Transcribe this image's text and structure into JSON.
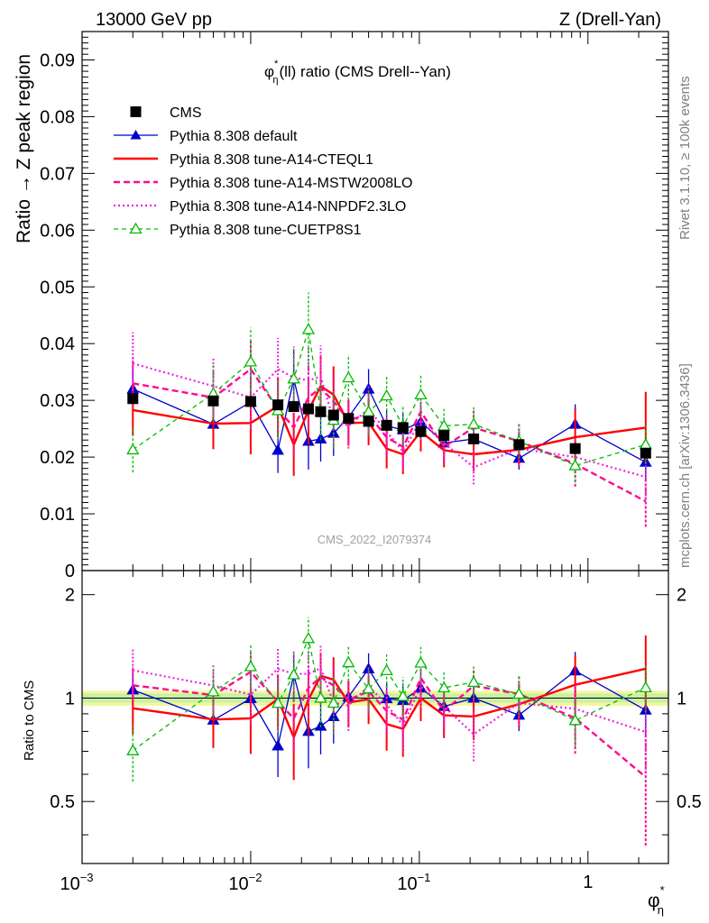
{
  "header": {
    "left": "13000 GeV pp",
    "right": "Z (Drell-Yan)"
  },
  "side": {
    "rivet": "Rivet 3.1.10, ≥ 100k events",
    "mcplots": "mcplots.cern.ch [arXiv:1306.3436]"
  },
  "watermark": "CMS_2022_I2079374",
  "colors": {
    "cms": "#000000",
    "default": "#0000cc",
    "cteql1": "#ff0000",
    "mstw": "#ff0a8c",
    "nnpdf": "#ee22dd",
    "cuetp8s1": "#00bb00",
    "band_outer": "#f4f79a",
    "band_inner": "#c8f0a8"
  },
  "chart_data": [
    {
      "type": "line",
      "title_main": "φ",
      "title_sup": "*",
      "title_sub": "η",
      "title_rest": "(ll) ratio (CMS Drell--Yan)",
      "ylabel": "Ratio → Z peak region",
      "xscale": "log",
      "xlim": [
        0.001,
        3.0
      ],
      "ylim": [
        0,
        0.095
      ],
      "yticks": [
        0,
        0.01,
        0.02,
        0.03,
        0.04,
        0.05,
        0.06,
        0.07,
        0.08,
        0.09
      ],
      "ytick_labels": [
        "0",
        "0.01",
        "0.02",
        "0.03",
        "0.04",
        "0.05",
        "0.06",
        "0.07",
        "0.08",
        "0.09"
      ],
      "legend_position": "top-left",
      "x": [
        0.002,
        0.006,
        0.01,
        0.0145,
        0.018,
        0.022,
        0.026,
        0.031,
        0.038,
        0.05,
        0.064,
        0.08,
        0.102,
        0.14,
        0.21,
        0.39,
        0.84,
        2.2
      ],
      "series": [
        {
          "name": "CMS",
          "style": "data",
          "values": [
            0.0303,
            0.0299,
            0.0298,
            0.0292,
            0.0289,
            0.0285,
            0.028,
            0.0274,
            0.0268,
            0.0263,
            0.0256,
            0.0252,
            0.0245,
            0.0238,
            0.0232,
            0.0222,
            0.0215,
            0.0207
          ]
        },
        {
          "name": "Pythia 8.308 default",
          "style": "default",
          "values": [
            0.032,
            0.0258,
            0.0297,
            0.0212,
            0.0338,
            0.0228,
            0.0232,
            0.0242,
            0.027,
            0.032,
            0.0255,
            0.0248,
            0.0262,
            0.0225,
            0.0232,
            0.0198,
            0.0258,
            0.0191
          ],
          "errors": [
            0.004,
            0.004,
            0.005,
            0.004,
            0.005,
            0.005,
            0.004,
            0.004,
            0.003,
            0.0035,
            0.003,
            0.003,
            0.003,
            0.003,
            0.003,
            0.002,
            0.0035,
            0.003
          ]
        },
        {
          "name": "Pythia 8.308 tune-A14-CTEQL1",
          "style": "cteql1",
          "values": [
            0.0283,
            0.0259,
            0.026,
            0.029,
            0.0222,
            0.0282,
            0.0325,
            0.031,
            0.026,
            0.0261,
            0.0215,
            0.0205,
            0.0245,
            0.0212,
            0.0205,
            0.0213,
            0.0235,
            0.0252
          ],
          "errors": [
            0.0045,
            0.0045,
            0.0055,
            0.005,
            0.0055,
            0.006,
            0.0055,
            0.005,
            0.004,
            0.004,
            0.0035,
            0.0035,
            0.0035,
            0.003,
            0.003,
            0.003,
            0.005,
            0.0063
          ]
        },
        {
          "name": "Pythia 8.308 tune-A14-MSTW2008LO",
          "style": "mstw",
          "values": [
            0.033,
            0.0305,
            0.0355,
            0.0285,
            0.0252,
            0.0305,
            0.0322,
            0.0298,
            0.0265,
            0.0275,
            0.0235,
            0.0218,
            0.028,
            0.0218,
            0.0252,
            0.0228,
            0.0188,
            0.0122
          ],
          "errors": [
            0.0045,
            0.0045,
            0.005,
            0.005,
            0.005,
            0.0055,
            0.005,
            0.005,
            0.004,
            0.004,
            0.0035,
            0.0035,
            0.0035,
            0.003,
            0.003,
            0.003,
            0.004,
            0.0045
          ]
        },
        {
          "name": "Pythia 8.308 tune-A14-NNPDF2.3LO",
          "style": "nnpdf",
          "values": [
            0.0365,
            0.0325,
            0.0305,
            0.0355,
            0.034,
            0.0335,
            0.0342,
            0.0265,
            0.0255,
            0.0285,
            0.0245,
            0.021,
            0.0265,
            0.0225,
            0.0182,
            0.0215,
            0.02,
            0.0165
          ],
          "errors": [
            0.0055,
            0.005,
            0.0055,
            0.0055,
            0.0055,
            0.006,
            0.0055,
            0.005,
            0.004,
            0.004,
            0.0035,
            0.0035,
            0.0035,
            0.003,
            0.003,
            0.003,
            0.0035,
            0.004
          ]
        },
        {
          "name": "Pythia 8.308 tune-CUETP8S1",
          "style": "cuetp8s1",
          "values": [
            0.0213,
            0.0312,
            0.0368,
            0.0282,
            0.0338,
            0.0425,
            0.028,
            0.0265,
            0.034,
            0.028,
            0.0308,
            0.0255,
            0.031,
            0.0255,
            0.0258,
            0.0228,
            0.0185,
            0.0222
          ],
          "errors": [
            0.004,
            0.005,
            0.006,
            0.005,
            0.0055,
            0.0065,
            0.005,
            0.005,
            0.004,
            0.004,
            0.0035,
            0.0035,
            0.0035,
            0.003,
            0.003,
            0.003,
            0.003,
            0.0035
          ]
        }
      ]
    },
    {
      "type": "line",
      "ylabel": "Ratio to CMS",
      "xlabel_main": "φ",
      "xlabel_sup": "*",
      "xlabel_sub": "η",
      "xscale": "log",
      "xlim": [
        0.001,
        3.0
      ],
      "ylim": [
        0.33,
        2.35
      ],
      "yticks": [
        0.5,
        1,
        2
      ],
      "ytick_labels": [
        "0.5",
        "1",
        "2"
      ],
      "xticks": [
        0.001,
        0.01,
        0.1,
        1
      ],
      "xtick_labels_base": [
        "10",
        "10",
        "10",
        ""
      ],
      "xtick_labels_exp": [
        "−3",
        "−2",
        "−1",
        ""
      ],
      "xtick_labels_plain": [
        "",
        "",
        "",
        "1"
      ],
      "band": {
        "inner": [
          0.97,
          1.03
        ],
        "outer": [
          0.95,
          1.05
        ]
      }
    }
  ]
}
